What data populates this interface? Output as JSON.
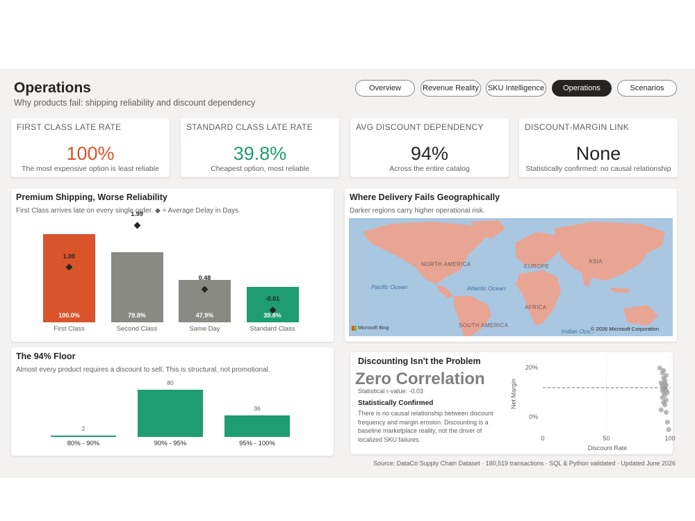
{
  "header": {
    "title": "Operations",
    "subtitle": "Why products fail: shipping reliability and discount dependency"
  },
  "nav": {
    "tabs": [
      {
        "label": "Overview",
        "active": false
      },
      {
        "label": "Revenue Reality",
        "active": false
      },
      {
        "label": "SKU Intelligence",
        "active": false
      },
      {
        "label": "Operations",
        "active": true
      },
      {
        "label": "Scenarios",
        "active": false
      }
    ]
  },
  "colors": {
    "orange": "#d9542b",
    "grey": "#8a8a85",
    "green": "#1e9c72",
    "dark": "#252423",
    "map_water": "#a9c7e1",
    "map_land": "#e8a594"
  },
  "kpis": [
    {
      "label": "FIRST CLASS LATE RATE",
      "value": "100%",
      "note": "The most expensive option is least reliable",
      "color": "#d9542b"
    },
    {
      "label": "STANDARD CLASS LATE RATE",
      "value": "39.8%",
      "note": "Cheapest option, most reliable",
      "color": "#1e9c72"
    },
    {
      "label": "AVG DISCOUNT DEPENDENCY",
      "value": "94%",
      "note": "Across the entire catalog",
      "color": "#252423"
    },
    {
      "label": "DISCOUNT-MARGIN LINK",
      "value": "None",
      "note": "Statistically confirmed: no causal relationship",
      "color": "#252423"
    }
  ],
  "shipping": {
    "title": "Premium Shipping, Worse Reliability",
    "subtitle": "First Class arrives late on every single order. ◆ = Average Delay in Days"
  },
  "map": {
    "title": "Where Delivery Fails Geographically",
    "subtitle": "Darker regions carry higher operational risk.",
    "labels": {
      "north_america": "NORTH AMERICA",
      "south_america": "SOUTH AMERICA",
      "europe": "EUROPE",
      "asia": "ASIA",
      "africa": "AFRICA",
      "pacific": "Pacific Ocean",
      "atlantic": "Atlantic Ocean",
      "indian": "Indian Oce..."
    },
    "attribution": "© 2026 Microsoft Corporation",
    "bing": "Microsoft Bing"
  },
  "floor": {
    "title": "The 94% Floor",
    "subtitle": "Almost every product requires a discount to sell. This is structural, not promotional."
  },
  "discount": {
    "title": "Discounting Isn't the Problem",
    "headline": "Zero Correlation",
    "stat": "Statistical r-value: -0.03",
    "confirm_title": "Statistically Confirmed",
    "body": "There is no causal relationship between discount frequency and margin erosion. Discounting is a baseline marketplace reality, not the driver of localized SKU failures."
  },
  "footer": "Source: DataCo Supply Chain Dataset · 180,519 transactions · SQL & Python validated · Updated June 2026",
  "chart_data": [
    {
      "type": "bar",
      "categories": [
        "First Class",
        "Second Class",
        "Same Day",
        "Standard Class"
      ],
      "series": [
        {
          "values": [
            100.0,
            79.8,
            47.9,
            39.8
          ]
        }
      ],
      "bar_labels": [
        "100.0%",
        "79.8%",
        "47.9%",
        "39.8%"
      ],
      "avg_delay_days": [
        1.0,
        1.99,
        0.48,
        -0.01
      ],
      "delay_labels": [
        "1.00",
        "1.99",
        "0.48",
        "-0.01"
      ],
      "bar_colors": [
        "#d9542b",
        "#8a8a85",
        "#8a8a85",
        "#1e9c72"
      ],
      "ylim": [
        0,
        100
      ],
      "delay_lim": [
        -0.3,
        2.4
      ]
    },
    {
      "type": "bar",
      "categories": [
        "80% - 90%",
        "90% - 95%",
        "95% - 100%"
      ],
      "values": [
        2,
        80,
        36
      ],
      "value_labels": [
        "2",
        "80",
        "36"
      ],
      "color": "#1e9c72",
      "ylim": [
        0,
        80
      ]
    },
    {
      "type": "scatter",
      "xlabel": "Discount Rate",
      "ylabel": "Net Margin",
      "x_ticks": [
        "0",
        "50",
        "100"
      ],
      "y_ticks": [
        "20%",
        "0%"
      ],
      "xlim": [
        0,
        100
      ],
      "ylim": [
        -0.08,
        0.25
      ],
      "reference_y": 0.12,
      "points": [
        [
          92,
          0.2
        ],
        [
          94,
          0.18
        ],
        [
          95,
          0.16
        ],
        [
          96,
          0.15
        ],
        [
          93,
          0.14
        ],
        [
          97,
          0.13
        ],
        [
          95,
          0.12
        ],
        [
          96,
          0.12
        ],
        [
          94,
          0.11
        ],
        [
          97,
          0.11
        ],
        [
          95,
          0.1
        ],
        [
          96,
          0.09
        ],
        [
          98,
          0.1
        ],
        [
          94,
          0.08
        ],
        [
          97,
          0.07
        ],
        [
          95,
          0.06
        ],
        [
          96,
          0.05
        ],
        [
          93,
          0.03
        ],
        [
          97,
          0.02
        ],
        [
          98,
          -0.02
        ],
        [
          99,
          -0.05
        ],
        [
          95,
          0.19
        ],
        [
          97,
          0.17
        ],
        [
          96,
          0.14
        ],
        [
          94,
          0.13
        ]
      ]
    }
  ]
}
